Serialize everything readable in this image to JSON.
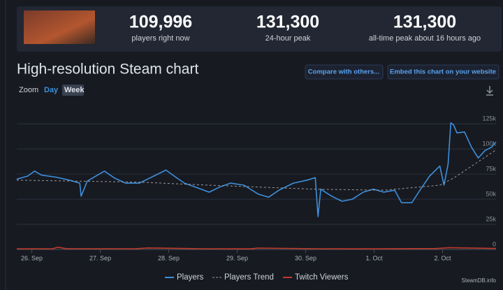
{
  "header": {
    "stats": [
      {
        "value": "109,996",
        "label": "players right now"
      },
      {
        "value": "131,300",
        "label": "24-hour peak"
      },
      {
        "value": "131,300",
        "label": "all-time peak about 16 hours ago"
      }
    ]
  },
  "section_title": "High-resolution Steam chart",
  "buttons": [
    "Compare with others...",
    "Embed this chart on your website"
  ],
  "zoom": {
    "label": "Zoom",
    "options": [
      "Day",
      "Week"
    ]
  },
  "credit": "SteamDB.info",
  "chart_data": {
    "type": "line",
    "grid": true,
    "xlim": [
      -0.22,
      6.78
    ],
    "xticks": [
      {
        "value": 0,
        "label": "26. Sep"
      },
      {
        "value": 1,
        "label": "27. Sep"
      },
      {
        "value": 2,
        "label": "28. Sep"
      },
      {
        "value": 3,
        "label": "29. Sep"
      },
      {
        "value": 4,
        "label": "30. Sep"
      },
      {
        "value": 5,
        "label": "1. Oct"
      },
      {
        "value": 6,
        "label": "2. Oct"
      }
    ],
    "ylim": [
      0,
      137000
    ],
    "yticks": [
      0,
      {
        "value": 25000,
        "label": "25k"
      },
      {
        "value": 50000,
        "label": "50k"
      },
      {
        "value": 75000,
        "label": "75k"
      },
      {
        "value": 100000,
        "label": "100k"
      },
      {
        "value": 125000,
        "label": "125k"
      }
    ],
    "series": [
      {
        "name": "Players",
        "color": "#3d8fdc",
        "style": "solid",
        "x": [
          -0.22,
          -0.06,
          0.04,
          0.14,
          0.35,
          0.55,
          0.7,
          0.72,
          0.81,
          0.96,
          1.06,
          1.21,
          1.37,
          1.57,
          1.78,
          1.96,
          2.08,
          2.23,
          2.39,
          2.59,
          2.74,
          2.9,
          3.1,
          3.31,
          3.46,
          3.61,
          3.82,
          4.02,
          4.14,
          4.18,
          4.22,
          4.38,
          4.53,
          4.68,
          4.84,
          4.99,
          5.14,
          5.3,
          5.4,
          5.55,
          5.65,
          5.81,
          5.96,
          6.02,
          6.08,
          6.12,
          6.16,
          6.21,
          6.32,
          6.42,
          6.52,
          6.62,
          6.72,
          6.78
        ],
        "values": [
          70000,
          73000,
          78000,
          74000,
          72000,
          69000,
          66000,
          53000,
          68000,
          74000,
          78000,
          71000,
          66000,
          66000,
          73000,
          79000,
          73000,
          66000,
          62000,
          57000,
          62000,
          66000,
          64000,
          55000,
          52000,
          59000,
          66000,
          69000,
          71500,
          32600,
          60000,
          53000,
          48000,
          50000,
          57000,
          60000,
          57000,
          59000,
          46500,
          46500,
          57000,
          73000,
          83000,
          64000,
          85000,
          126000,
          124000,
          116000,
          117000,
          102000,
          91000,
          98500,
          102000,
          107000
        ]
      },
      {
        "name": "Players Trend",
        "color": "#9a9a9a",
        "style": "dashed",
        "x": [
          -0.22,
          1.57,
          2.59,
          4.12,
          5.14,
          5.96,
          6.16,
          6.78
        ],
        "values": [
          69000,
          67000,
          64000,
          60000,
          59000,
          64000,
          71000,
          99000
        ]
      },
      {
        "name": "Twitch Viewers",
        "color": "#c0392b",
        "style": "solid",
        "x": [
          -0.22,
          0.3,
          0.38,
          0.5,
          1.5,
          1.7,
          2.5,
          3.2,
          3.3,
          4.2,
          5.0,
          5.9,
          6.1,
          6.78
        ],
        "values": [
          600,
          700,
          2200,
          800,
          700,
          1500,
          700,
          600,
          1400,
          700,
          600,
          900,
          1800,
          1000
        ]
      }
    ]
  }
}
